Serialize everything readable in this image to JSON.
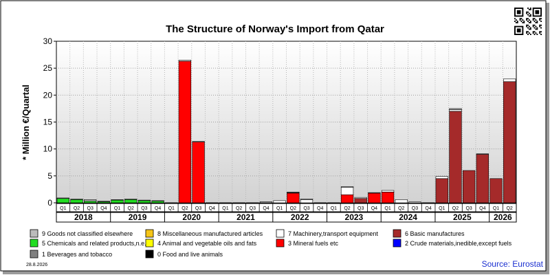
{
  "colors": {
    "chemicals": "#22dd22",
    "basic_manufactures": "#a52a2a",
    "mineral_fuels": "#ff0000",
    "machinery": "#ffffff",
    "other": "#bbbbbb",
    "beverages": "#808080",
    "food": "#000000",
    "animal_veg": "#ffff00",
    "crude": "#0000ff",
    "misc_manufactured": "#f5c518"
  },
  "chart_data": {
    "type": "bar",
    "stacked": true,
    "title": "The Structure of Norway's Import from Qatar",
    "ylabel": "* Million €/Quartal",
    "ylim": [
      0,
      30
    ],
    "yticks": [
      0,
      5,
      10,
      15,
      20,
      25,
      30
    ],
    "grid": true,
    "years": [
      "2018",
      "2019",
      "2020",
      "2021",
      "2022",
      "2023",
      "2024",
      "2025",
      "2026"
    ],
    "categories": [
      "Q1",
      "Q2",
      "Q3",
      "Q4",
      "Q1",
      "Q2",
      "Q3",
      "Q4",
      "Q1",
      "Q2",
      "Q3",
      "Q4",
      "Q1",
      "Q2",
      "Q3",
      "Q4",
      "Q1",
      "Q2",
      "Q3",
      "Q4",
      "Q1",
      "Q2",
      "Q3",
      "Q4",
      "Q1",
      "Q2",
      "Q3",
      "Q4",
      "Q1",
      "Q2",
      "Q3",
      "Q4",
      "Q1",
      "Q2"
    ],
    "series": [
      {
        "name": "5 Chemicals and related products,n.e.s.",
        "color_key": "chemicals",
        "values": [
          0.8,
          0.6,
          0.3,
          0.2,
          0.5,
          0.6,
          0.4,
          0.3,
          0,
          0,
          0,
          0,
          0,
          0,
          0,
          0,
          0,
          0,
          0,
          0,
          0,
          0,
          0,
          0,
          0,
          0,
          0,
          0,
          0,
          0,
          0,
          0,
          0,
          0
        ]
      },
      {
        "name": "6 Basic manufactures",
        "color_key": "basic_manufactures",
        "values": [
          0,
          0,
          0,
          0,
          0,
          0,
          0,
          0,
          0,
          0,
          0,
          0,
          0,
          0,
          0,
          0,
          0,
          0,
          0,
          0,
          0,
          0,
          0.8,
          0,
          0,
          0,
          0,
          0,
          4.5,
          17,
          6,
          9,
          4.5,
          22.5
        ]
      },
      {
        "name": "3 Mineral fuels etc",
        "color_key": "mineral_fuels",
        "values": [
          0,
          0,
          0,
          0,
          0,
          0,
          0,
          0,
          0,
          26.3,
          11.3,
          0,
          0,
          0,
          0,
          0,
          0,
          1.8,
          0,
          0,
          0,
          1.5,
          0,
          1.8,
          2.0,
          0,
          0,
          0,
          0,
          0,
          0,
          0,
          0,
          0
        ]
      },
      {
        "name": "7 Machinery,transport equipment",
        "color_key": "machinery",
        "values": [
          0,
          0,
          0,
          0,
          0,
          0,
          0,
          0,
          0,
          0.2,
          0.1,
          0,
          0,
          0,
          0,
          0,
          0.4,
          0.1,
          0.6,
          0,
          0,
          1.4,
          0.2,
          0,
          0.3,
          0.6,
          0.2,
          0,
          0.4,
          0.3,
          0,
          0,
          0,
          0.5
        ]
      },
      {
        "name": "9 Goods not classified elsewhere",
        "color_key": "other",
        "values": [
          0.1,
          0.1,
          0.3,
          0.1,
          0.1,
          0.1,
          0.1,
          0.1,
          0,
          0,
          0,
          0,
          0,
          0,
          0,
          0.2,
          0,
          0.1,
          0.1,
          0,
          0,
          0.1,
          0,
          0.1,
          0,
          0,
          0,
          0,
          0,
          0.2,
          0,
          0.1,
          0,
          0
        ]
      }
    ],
    "legend": [
      {
        "label": "9 Goods not classified elsewhere",
        "color_key": "other"
      },
      {
        "label": "8 Miscellaneous manufactured articles",
        "color_key": "misc_manufactured"
      },
      {
        "label": "7 Machinery,transport equipment",
        "color_key": "machinery"
      },
      {
        "label": "6 Basic manufactures",
        "color_key": "basic_manufactures"
      },
      {
        "label": "5 Chemicals and related products,n.e.s.",
        "color_key": "chemicals"
      },
      {
        "label": "4 Animal and vegetable oils and fats",
        "color_key": "animal_veg"
      },
      {
        "label": "3 Mineral fuels etc",
        "color_key": "mineral_fuels"
      },
      {
        "label": "2 Crude materials,inedible,except fuels",
        "color_key": "crude"
      },
      {
        "label": "1 Beverages and tobacco",
        "color_key": "beverages"
      },
      {
        "label": "0 Food and live animals",
        "color_key": "food"
      }
    ]
  },
  "footer": {
    "date": "28.8.2026",
    "source": "Source: Eurostat"
  }
}
